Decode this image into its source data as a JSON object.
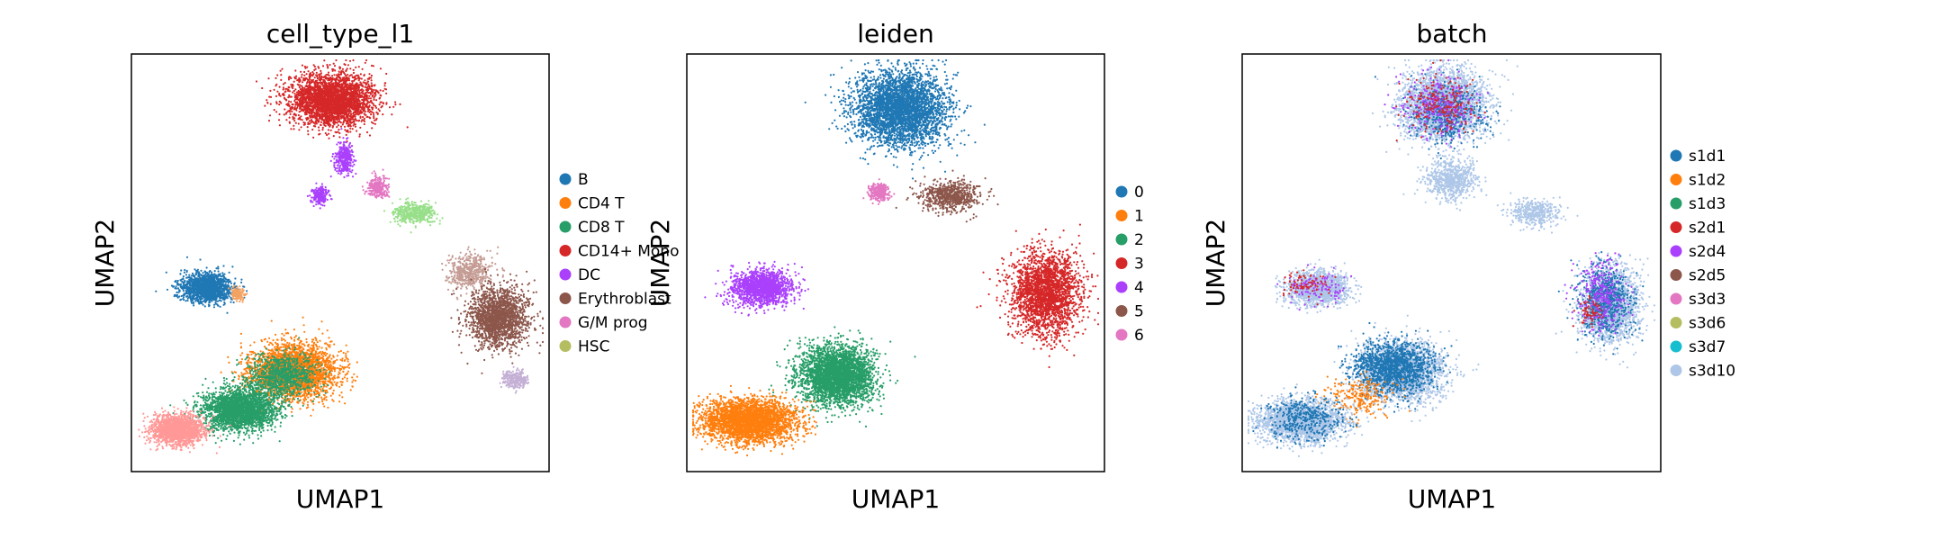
{
  "chart_data": [
    {
      "type": "scatter",
      "title": "cell_type_l1",
      "xlabel": "UMAP1",
      "ylabel": "UMAP2",
      "legend_position": "right",
      "legend": [
        {
          "label": "B",
          "color": "#1f77b4"
        },
        {
          "label": "CD4 T",
          "color": "#ff7f0e"
        },
        {
          "label": "CD8 T",
          "color": "#279e68"
        },
        {
          "label": "CD14+ Mono",
          "color": "#d62728"
        },
        {
          "label": "DC",
          "color": "#aa40fc"
        },
        {
          "label": "Erythroblast",
          "color": "#8c564b"
        },
        {
          "label": "G/M prog",
          "color": "#e377c2"
        },
        {
          "label": "HSC",
          "color": "#b5bd61"
        }
      ],
      "clusters": [
        {
          "series": "B",
          "color": "#1f77b4",
          "x": 0.18,
          "y": 0.56,
          "sx": 0.06,
          "sy": 0.035,
          "n": 1500
        },
        {
          "series": "B",
          "color": "#f4a261",
          "x": 0.255,
          "y": 0.575,
          "sx": 0.015,
          "sy": 0.015,
          "n": 150
        },
        {
          "series": "CD14+ Mono",
          "color": "#d62728",
          "x": 0.48,
          "y": 0.11,
          "sx": 0.1,
          "sy": 0.06,
          "n": 3200
        },
        {
          "series": "DC",
          "color": "#aa40fc",
          "x": 0.51,
          "y": 0.25,
          "sx": 0.02,
          "sy": 0.04,
          "n": 350
        },
        {
          "series": "DC",
          "color": "#aa40fc",
          "x": 0.45,
          "y": 0.34,
          "sx": 0.02,
          "sy": 0.02,
          "n": 220
        },
        {
          "series": "G/M prog",
          "color": "#e377c2",
          "x": 0.59,
          "y": 0.32,
          "sx": 0.025,
          "sy": 0.025,
          "n": 300
        },
        {
          "series": "HSC",
          "color": "#98df8a",
          "x": 0.68,
          "y": 0.38,
          "sx": 0.05,
          "sy": 0.025,
          "n": 450
        },
        {
          "series": "Erythroblast",
          "color": "#c49c94",
          "x": 0.81,
          "y": 0.52,
          "sx": 0.05,
          "sy": 0.04,
          "n": 500
        },
        {
          "series": "Erythroblast",
          "color": "#8c564b",
          "x": 0.88,
          "y": 0.63,
          "sx": 0.07,
          "sy": 0.07,
          "n": 1800
        },
        {
          "series": "Erythroblast",
          "color": "#c5b0d5",
          "x": 0.92,
          "y": 0.78,
          "sx": 0.03,
          "sy": 0.02,
          "n": 280
        },
        {
          "series": "CD4 T",
          "color": "#ff7f0e",
          "x": 0.39,
          "y": 0.76,
          "sx": 0.1,
          "sy": 0.065,
          "n": 3000
        },
        {
          "series": "CD8 T",
          "color": "#279e68",
          "x": 0.26,
          "y": 0.85,
          "sx": 0.09,
          "sy": 0.05,
          "n": 2500
        },
        {
          "series": "CD8 T",
          "color": "#279e68",
          "x": 0.36,
          "y": 0.77,
          "sx": 0.08,
          "sy": 0.05,
          "n": 900
        },
        {
          "series": "CD4 T",
          "color": "#ff9896",
          "x": 0.11,
          "y": 0.9,
          "sx": 0.06,
          "sy": 0.035,
          "n": 1800
        }
      ]
    },
    {
      "type": "scatter",
      "title": "leiden",
      "xlabel": "UMAP1",
      "ylabel": "UMAP2",
      "legend_position": "right",
      "legend": [
        {
          "label": "0",
          "color": "#1f77b4"
        },
        {
          "label": "1",
          "color": "#ff7f0e"
        },
        {
          "label": "2",
          "color": "#279e68"
        },
        {
          "label": "3",
          "color": "#d62728"
        },
        {
          "label": "4",
          "color": "#aa40fc"
        },
        {
          "label": "5",
          "color": "#8c564b"
        },
        {
          "label": "6",
          "color": "#e377c2"
        }
      ],
      "clusters": [
        {
          "series": "0",
          "color": "#1f77b4",
          "x": 0.51,
          "y": 0.13,
          "sx": 0.11,
          "sy": 0.09,
          "n": 3600
        },
        {
          "series": "4",
          "color": "#aa40fc",
          "x": 0.18,
          "y": 0.56,
          "sx": 0.07,
          "sy": 0.04,
          "n": 1600
        },
        {
          "series": "6",
          "color": "#e377c2",
          "x": 0.46,
          "y": 0.33,
          "sx": 0.025,
          "sy": 0.02,
          "n": 300
        },
        {
          "series": "5",
          "color": "#8c564b",
          "x": 0.63,
          "y": 0.34,
          "sx": 0.07,
          "sy": 0.035,
          "n": 700
        },
        {
          "series": "3",
          "color": "#d62728",
          "x": 0.86,
          "y": 0.57,
          "sx": 0.08,
          "sy": 0.1,
          "n": 2400
        },
        {
          "series": "2",
          "color": "#279e68",
          "x": 0.36,
          "y": 0.77,
          "sx": 0.09,
          "sy": 0.07,
          "n": 3300
        },
        {
          "series": "1",
          "color": "#ff7f0e",
          "x": 0.15,
          "y": 0.88,
          "sx": 0.11,
          "sy": 0.05,
          "n": 3200
        }
      ]
    },
    {
      "type": "scatter",
      "title": "batch",
      "xlabel": "UMAP1",
      "ylabel": "UMAP2",
      "legend_position": "right",
      "legend": [
        {
          "label": "s1d1",
          "color": "#1f77b4"
        },
        {
          "label": "s1d2",
          "color": "#ff7f0e"
        },
        {
          "label": "s1d3",
          "color": "#279e68"
        },
        {
          "label": "s2d1",
          "color": "#d62728"
        },
        {
          "label": "s2d4",
          "color": "#aa40fc"
        },
        {
          "label": "s2d5",
          "color": "#8c564b"
        },
        {
          "label": "s3d3",
          "color": "#e377c2"
        },
        {
          "label": "s3d6",
          "color": "#b5bd61"
        },
        {
          "label": "s3d7",
          "color": "#17becf"
        },
        {
          "label": "s3d10",
          "color": "#aec7e8"
        }
      ],
      "clusters": [
        {
          "series": "s3d10",
          "color": "#aec7e8",
          "x": 0.48,
          "y": 0.12,
          "sx": 0.1,
          "sy": 0.08,
          "n": 3200
        },
        {
          "series": "s1d1",
          "color": "#1f77b4",
          "x": 0.49,
          "y": 0.14,
          "sx": 0.09,
          "sy": 0.07,
          "n": 500
        },
        {
          "series": "s2d4",
          "color": "#aa40fc",
          "x": 0.47,
          "y": 0.12,
          "sx": 0.09,
          "sy": 0.07,
          "n": 300
        },
        {
          "series": "s2d1",
          "color": "#d62728",
          "x": 0.48,
          "y": 0.12,
          "sx": 0.09,
          "sy": 0.07,
          "n": 200
        },
        {
          "series": "s3d10",
          "color": "#aec7e8",
          "x": 0.5,
          "y": 0.3,
          "sx": 0.06,
          "sy": 0.05,
          "n": 700
        },
        {
          "series": "s3d10",
          "color": "#aec7e8",
          "x": 0.7,
          "y": 0.38,
          "sx": 0.06,
          "sy": 0.03,
          "n": 400
        },
        {
          "series": "s3d10",
          "color": "#aec7e8",
          "x": 0.18,
          "y": 0.56,
          "sx": 0.07,
          "sy": 0.04,
          "n": 1500
        },
        {
          "series": "s2d4",
          "color": "#aa40fc",
          "x": 0.18,
          "y": 0.56,
          "sx": 0.07,
          "sy": 0.04,
          "n": 120
        },
        {
          "series": "s2d1",
          "color": "#d62728",
          "x": 0.15,
          "y": 0.55,
          "sx": 0.05,
          "sy": 0.03,
          "n": 80
        },
        {
          "series": "s3d10",
          "color": "#aec7e8",
          "x": 0.88,
          "y": 0.6,
          "sx": 0.07,
          "sy": 0.09,
          "n": 1800
        },
        {
          "series": "s1d1",
          "color": "#1f77b4",
          "x": 0.87,
          "y": 0.59,
          "sx": 0.06,
          "sy": 0.08,
          "n": 700
        },
        {
          "series": "s2d4",
          "color": "#aa40fc",
          "x": 0.86,
          "y": 0.58,
          "sx": 0.06,
          "sy": 0.08,
          "n": 300
        },
        {
          "series": "s2d1",
          "color": "#d62728",
          "x": 0.83,
          "y": 0.62,
          "sx": 0.03,
          "sy": 0.03,
          "n": 60
        },
        {
          "series": "s3d10",
          "color": "#aec7e8",
          "x": 0.38,
          "y": 0.76,
          "sx": 0.1,
          "sy": 0.07,
          "n": 2500
        },
        {
          "series": "s1d1",
          "color": "#1f77b4",
          "x": 0.36,
          "y": 0.75,
          "sx": 0.09,
          "sy": 0.06,
          "n": 1500
        },
        {
          "series": "s1d2",
          "color": "#ff7f0e",
          "x": 0.28,
          "y": 0.82,
          "sx": 0.08,
          "sy": 0.05,
          "n": 250
        },
        {
          "series": "s3d10",
          "color": "#aec7e8",
          "x": 0.14,
          "y": 0.88,
          "sx": 0.1,
          "sy": 0.05,
          "n": 2200
        },
        {
          "series": "s1d1",
          "color": "#1f77b4",
          "x": 0.15,
          "y": 0.87,
          "sx": 0.09,
          "sy": 0.05,
          "n": 400
        }
      ]
    }
  ]
}
